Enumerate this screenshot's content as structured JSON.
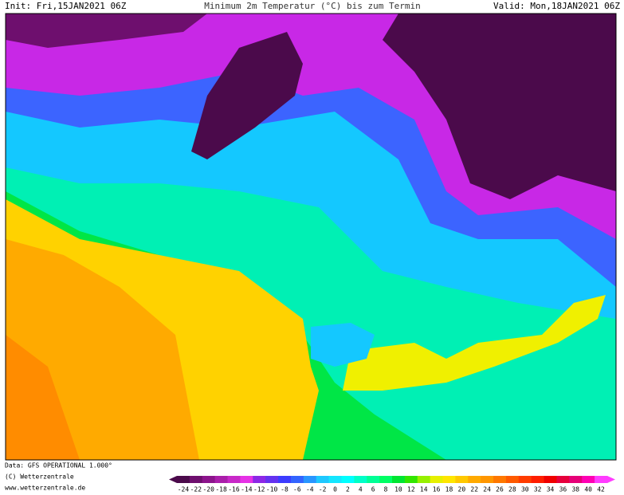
{
  "header": {
    "init": "Init: Fri,15JAN2021 06Z",
    "title": "Minimum 2m Temperatur (°C) bis zum Termin",
    "valid": "Valid: Mon,18JAN2021 06Z"
  },
  "footer": {
    "data": "Data: GFS OPERATIONAL 1.000°",
    "copyright": "(C) Wetterzentrale",
    "url": "www.wetterzentrale.de"
  },
  "legend": {
    "labels": [
      "-24",
      "-22",
      "-20",
      "-18",
      "-16",
      "-14",
      "-12",
      "-10",
      "-8",
      "-6",
      "-4",
      "-2",
      "0",
      "2",
      "4",
      "6",
      "8",
      "10",
      "12",
      "14",
      "16",
      "18",
      "20",
      "22",
      "24",
      "26",
      "28",
      "30",
      "32",
      "34",
      "36",
      "38",
      "40",
      "42"
    ],
    "colors": [
      "#4b0a4b",
      "#6e0f6e",
      "#8c148c",
      "#aa1eaa",
      "#c828c8",
      "#e632e6",
      "#8c28e6",
      "#6432f0",
      "#3c3cff",
      "#3264ff",
      "#2896ff",
      "#1ec8ff",
      "#14e6ff",
      "#00ffff",
      "#00ffc8",
      "#00ff96",
      "#00ff64",
      "#00e632",
      "#32e600",
      "#96f000",
      "#e6f000",
      "#ffe600",
      "#ffc800",
      "#ffaa00",
      "#ff9600",
      "#ff7800",
      "#ff5a00",
      "#ff3c00",
      "#ff1e00",
      "#f00000",
      "#e6003c",
      "#e60078",
      "#ff00b4",
      "#ff3cff"
    ]
  }
}
